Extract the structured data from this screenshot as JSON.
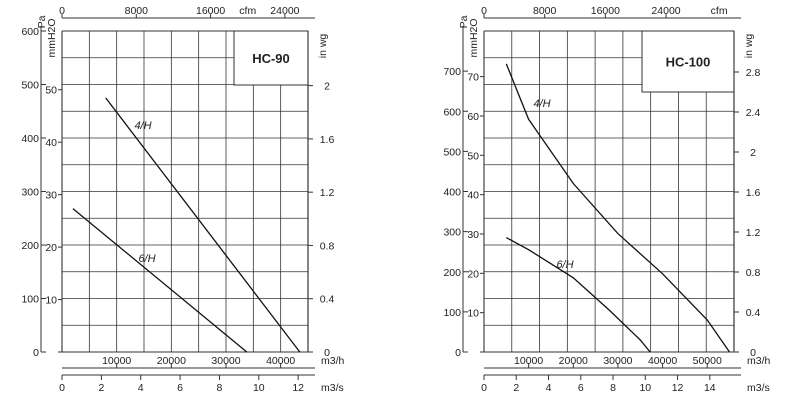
{
  "chart_data": [
    {
      "type": "line",
      "model": "HC-90",
      "units": {
        "left_outer": "Pa",
        "left_inner": "mmH2O",
        "top": "cfm",
        "right_top": "in wg",
        "bottom_main": "m3/h",
        "bottom_secondary": "m3/s"
      },
      "axes": {
        "x_m3h": {
          "range": [
            0,
            45000
          ],
          "ticks": [
            10000,
            20000,
            30000,
            40000
          ],
          "labels": [
            "10000",
            "20000",
            "30000",
            "40000"
          ]
        },
        "x_m3s": {
          "range": [
            0,
            12.5
          ],
          "ticks": [
            0,
            2,
            4,
            6,
            8,
            10,
            12
          ],
          "labels": [
            "0",
            "2",
            "4",
            "6",
            "8",
            "10",
            "12"
          ]
        },
        "x_cfm": {
          "range": [
            0,
            26487
          ],
          "ticks": [
            0,
            8000,
            16000,
            24000
          ],
          "labels": [
            "0",
            "8000",
            "16000",
            "24000"
          ],
          "unit_label_at": 20000
        },
        "y_pa": {
          "range": [
            0,
            600
          ],
          "ticks": [
            0,
            100,
            200,
            300,
            400,
            500,
            600
          ],
          "labels": [
            "0",
            "100",
            "200",
            "300",
            "400",
            "500",
            "600"
          ]
        },
        "y_mmh2o": {
          "range": [
            0,
            61.2
          ],
          "ticks": [
            10,
            20,
            30,
            40,
            50
          ],
          "labels": [
            "10",
            "20",
            "30",
            "40",
            "50"
          ]
        },
        "y_inwg": {
          "range": [
            0,
            2.41
          ],
          "ticks": [
            0,
            0.4,
            0.8,
            1.2,
            1.6,
            2
          ],
          "labels": [
            "0",
            "0.4",
            "0.8",
            "1.2",
            "1.6",
            "2"
          ]
        }
      },
      "series": [
        {
          "name": "4/H",
          "x": [
            8000,
            43500
          ],
          "y": [
            475,
            0
          ]
        },
        {
          "name": "6/H",
          "x": [
            2000,
            33800
          ],
          "y": [
            268,
            0
          ]
        }
      ]
    },
    {
      "type": "line",
      "model": "HC-100",
      "units": {
        "left_outer": "Pa",
        "left_inner": "mmH2O",
        "top": "cfm",
        "right_top": "in wg",
        "bottom_main": "m3/h",
        "bottom_secondary": "m3/s"
      },
      "axes": {
        "x_m3h": {
          "range": [
            0,
            56000
          ],
          "ticks": [
            10000,
            20000,
            30000,
            40000,
            50000
          ],
          "labels": [
            "10000",
            "20000",
            "30000",
            "40000",
            "50000"
          ]
        },
        "x_m3s": {
          "range": [
            0,
            15.5
          ],
          "ticks": [
            0,
            2,
            4,
            6,
            8,
            10,
            12,
            14
          ],
          "labels": [
            "0",
            "2",
            "4",
            "6",
            "8",
            "10",
            "12",
            "14"
          ]
        },
        "x_cfm": {
          "range": [
            0,
            32960
          ],
          "ticks": [
            0,
            8000,
            16000,
            24000
          ],
          "labels": [
            "0",
            "8000",
            "16000",
            "24000"
          ],
          "unit_label_at": 31000
        },
        "y_pa": {
          "range": [
            0,
            800
          ],
          "ticks": [
            0,
            100,
            200,
            300,
            400,
            500,
            600,
            700
          ],
          "labels": [
            "0",
            "100",
            "200",
            "300",
            "400",
            "500",
            "600",
            "700"
          ]
        },
        "y_mmh2o": {
          "range": [
            0,
            81.6
          ],
          "ticks": [
            10,
            20,
            30,
            40,
            50,
            60,
            70
          ],
          "labels": [
            "10",
            "20",
            "30",
            "40",
            "50",
            "60",
            "70"
          ]
        },
        "y_inwg": {
          "range": [
            0,
            3.21
          ],
          "ticks": [
            0,
            0.4,
            0.8,
            1.2,
            1.6,
            2,
            2.4,
            2.8
          ],
          "labels": [
            "0",
            "0.4",
            "0.8",
            "1.2",
            "1.6",
            "2",
            "2.4",
            "2.8"
          ]
        }
      },
      "series": [
        {
          "name": "4/H",
          "x": [
            5000,
            10000,
            20000,
            30000,
            40000,
            50000,
            55000
          ],
          "y": [
            718,
            580,
            420,
            295,
            195,
            80,
            0
          ]
        },
        {
          "name": "6/H",
          "x": [
            5000,
            10000,
            20000,
            28000,
            35000,
            37200
          ],
          "y": [
            285,
            255,
            185,
            105,
            30,
            0
          ]
        }
      ]
    }
  ]
}
